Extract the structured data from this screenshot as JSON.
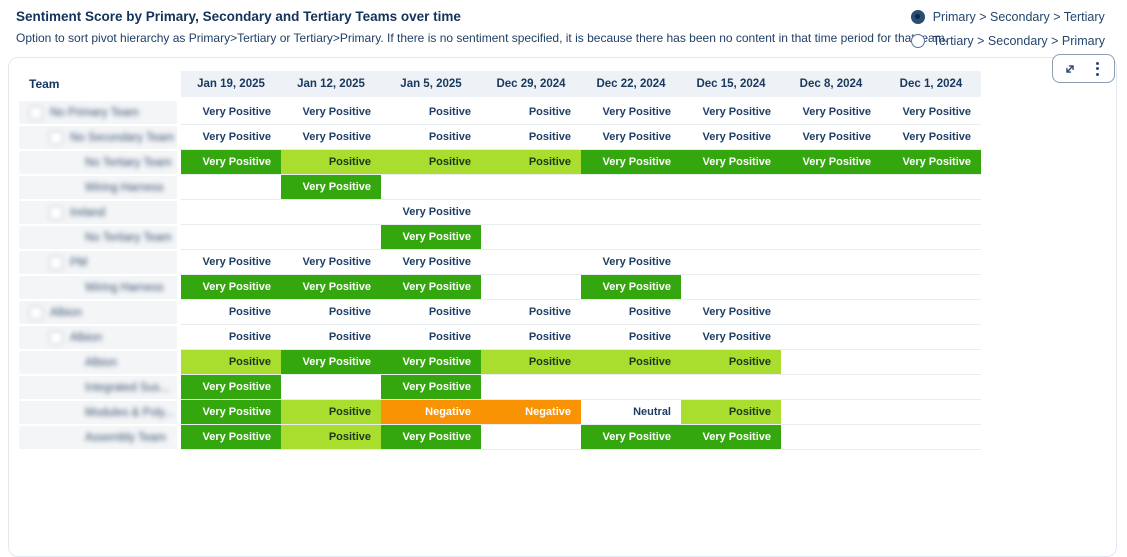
{
  "header": {
    "title": "Sentiment Score by Primary, Secondary and Tertiary Teams over time",
    "subtitle": "Option to sort pivot hierarchy as Primary>Tertiary or Tertiary>Primary. If there is no sentiment specified, it is because there has been no content in that time period for that team.",
    "sort_options": [
      {
        "label": "Primary > Secondary > Tertiary",
        "selected": true
      },
      {
        "label": "Tertiary > Secondary > Primary",
        "selected": false
      }
    ]
  },
  "controls": {
    "expand_icon": "expand-arrows-icon",
    "menu_icon": "kebab-menu-icon"
  },
  "palette": {
    "green": "#35a70e",
    "lime": "#aade2e",
    "orange": "#fa9304",
    "navy": "#1c3c63",
    "headerbg": "#eef1f5",
    "rowborder": "#e8edf2",
    "treebg": "#f3f5f7",
    "onlime": "#173a1c"
  },
  "table": {
    "team_header": "Team",
    "columns": [
      "Jan 19, 2025",
      "Jan 12, 2025",
      "Jan 5, 2025",
      "Dec 29, 2024",
      "Dec 22, 2024",
      "Dec 15, 2024",
      "Dec 8, 2024",
      "Dec 1, 2024"
    ],
    "sentiment_levels": [
      "Very Positive",
      "Positive",
      "Neutral",
      "Negative"
    ],
    "rows": [
      {
        "label": "No Primary Team",
        "level": 1,
        "checkbox": true,
        "redacted": true,
        "cells": [
          {
            "text": "Very Positive",
            "tone": "plain"
          },
          {
            "text": "Very Positive",
            "tone": "plain"
          },
          {
            "text": "Positive",
            "tone": "plain"
          },
          {
            "text": "Positive",
            "tone": "plain"
          },
          {
            "text": "Very Positive",
            "tone": "plain"
          },
          {
            "text": "Very Positive",
            "tone": "plain"
          },
          {
            "text": "Very Positive",
            "tone": "plain"
          },
          {
            "text": "Very Positive",
            "tone": "plain"
          }
        ]
      },
      {
        "label": "No Secondary Team",
        "level": 2,
        "checkbox": true,
        "redacted": true,
        "cells": [
          {
            "text": "Very Positive",
            "tone": "plain"
          },
          {
            "text": "Very Positive",
            "tone": "plain"
          },
          {
            "text": "Positive",
            "tone": "plain"
          },
          {
            "text": "Positive",
            "tone": "plain"
          },
          {
            "text": "Very Positive",
            "tone": "plain"
          },
          {
            "text": "Very Positive",
            "tone": "plain"
          },
          {
            "text": "Very Positive",
            "tone": "plain"
          },
          {
            "text": "Very Positive",
            "tone": "plain"
          }
        ]
      },
      {
        "label": "No Tertiary Team",
        "level": 3,
        "checkbox": false,
        "redacted": true,
        "cells": [
          {
            "text": "Very Positive",
            "tone": "green"
          },
          {
            "text": "Positive",
            "tone": "lime"
          },
          {
            "text": "Positive",
            "tone": "lime"
          },
          {
            "text": "Positive",
            "tone": "lime"
          },
          {
            "text": "Very Positive",
            "tone": "green"
          },
          {
            "text": "Very Positive",
            "tone": "green"
          },
          {
            "text": "Very Positive",
            "tone": "green"
          },
          {
            "text": "Very Positive",
            "tone": "green"
          }
        ]
      },
      {
        "label": "Wiring Harness",
        "level": 3,
        "checkbox": false,
        "redacted": true,
        "cells": [
          {
            "text": "",
            "tone": "empty"
          },
          {
            "text": "Very Positive",
            "tone": "green"
          },
          {
            "text": "",
            "tone": "empty"
          },
          {
            "text": "",
            "tone": "empty"
          },
          {
            "text": "",
            "tone": "empty"
          },
          {
            "text": "",
            "tone": "empty"
          },
          {
            "text": "",
            "tone": "empty"
          },
          {
            "text": "",
            "tone": "empty"
          }
        ]
      },
      {
        "label": "Ireland",
        "level": 2,
        "checkbox": true,
        "redacted": true,
        "cells": [
          {
            "text": "",
            "tone": "empty"
          },
          {
            "text": "",
            "tone": "empty"
          },
          {
            "text": "Very Positive",
            "tone": "plain"
          },
          {
            "text": "",
            "tone": "empty"
          },
          {
            "text": "",
            "tone": "empty"
          },
          {
            "text": "",
            "tone": "empty"
          },
          {
            "text": "",
            "tone": "empty"
          },
          {
            "text": "",
            "tone": "empty"
          }
        ]
      },
      {
        "label": "No Tertiary Team",
        "level": 3,
        "checkbox": false,
        "redacted": true,
        "cells": [
          {
            "text": "",
            "tone": "empty"
          },
          {
            "text": "",
            "tone": "empty"
          },
          {
            "text": "Very Positive",
            "tone": "green"
          },
          {
            "text": "",
            "tone": "empty"
          },
          {
            "text": "",
            "tone": "empty"
          },
          {
            "text": "",
            "tone": "empty"
          },
          {
            "text": "",
            "tone": "empty"
          },
          {
            "text": "",
            "tone": "empty"
          }
        ]
      },
      {
        "label": "PM",
        "level": 2,
        "checkbox": true,
        "redacted": true,
        "cells": [
          {
            "text": "Very Positive",
            "tone": "plain"
          },
          {
            "text": "Very Positive",
            "tone": "plain"
          },
          {
            "text": "Very Positive",
            "tone": "plain"
          },
          {
            "text": "",
            "tone": "empty"
          },
          {
            "text": "Very Positive",
            "tone": "plain"
          },
          {
            "text": "",
            "tone": "empty"
          },
          {
            "text": "",
            "tone": "empty"
          },
          {
            "text": "",
            "tone": "empty"
          }
        ]
      },
      {
        "label": "Wiring Harness",
        "level": 3,
        "checkbox": false,
        "redacted": true,
        "cells": [
          {
            "text": "Very Positive",
            "tone": "green"
          },
          {
            "text": "Very Positive",
            "tone": "green"
          },
          {
            "text": "Very Positive",
            "tone": "green"
          },
          {
            "text": "",
            "tone": "empty"
          },
          {
            "text": "Very Positive",
            "tone": "green"
          },
          {
            "text": "",
            "tone": "empty"
          },
          {
            "text": "",
            "tone": "empty"
          },
          {
            "text": "",
            "tone": "empty"
          }
        ]
      },
      {
        "label": "Albion",
        "level": 1,
        "checkbox": true,
        "redacted": true,
        "cells": [
          {
            "text": "Positive",
            "tone": "plain"
          },
          {
            "text": "Positive",
            "tone": "plain"
          },
          {
            "text": "Positive",
            "tone": "plain"
          },
          {
            "text": "Positive",
            "tone": "plain"
          },
          {
            "text": "Positive",
            "tone": "plain"
          },
          {
            "text": "Very Positive",
            "tone": "plain"
          },
          {
            "text": "",
            "tone": "empty"
          },
          {
            "text": "",
            "tone": "empty"
          }
        ]
      },
      {
        "label": "Albion",
        "level": 2,
        "checkbox": true,
        "redacted": true,
        "cells": [
          {
            "text": "Positive",
            "tone": "plain"
          },
          {
            "text": "Positive",
            "tone": "plain"
          },
          {
            "text": "Positive",
            "tone": "plain"
          },
          {
            "text": "Positive",
            "tone": "plain"
          },
          {
            "text": "Positive",
            "tone": "plain"
          },
          {
            "text": "Very Positive",
            "tone": "plain"
          },
          {
            "text": "",
            "tone": "empty"
          },
          {
            "text": "",
            "tone": "empty"
          }
        ]
      },
      {
        "label": "Albion",
        "level": 3,
        "checkbox": false,
        "redacted": true,
        "cells": [
          {
            "text": "Positive",
            "tone": "lime"
          },
          {
            "text": "Very Positive",
            "tone": "green"
          },
          {
            "text": "Very Positive",
            "tone": "green"
          },
          {
            "text": "Positive",
            "tone": "lime"
          },
          {
            "text": "Positive",
            "tone": "lime"
          },
          {
            "text": "Positive",
            "tone": "lime"
          },
          {
            "text": "",
            "tone": "empty"
          },
          {
            "text": "",
            "tone": "empty"
          }
        ]
      },
      {
        "label": "Integrated Sus...",
        "level": 3,
        "checkbox": false,
        "redacted": true,
        "cells": [
          {
            "text": "Very Positive",
            "tone": "green"
          },
          {
            "text": "",
            "tone": "empty"
          },
          {
            "text": "Very Positive",
            "tone": "green"
          },
          {
            "text": "",
            "tone": "empty"
          },
          {
            "text": "",
            "tone": "empty"
          },
          {
            "text": "",
            "tone": "empty"
          },
          {
            "text": "",
            "tone": "empty"
          },
          {
            "text": "",
            "tone": "empty"
          }
        ]
      },
      {
        "label": "Modules & Poly...",
        "level": 3,
        "checkbox": false,
        "redacted": true,
        "cells": [
          {
            "text": "Very Positive",
            "tone": "green"
          },
          {
            "text": "Positive",
            "tone": "lime"
          },
          {
            "text": "Negative",
            "tone": "orange"
          },
          {
            "text": "Negative",
            "tone": "orange"
          },
          {
            "text": "Neutral",
            "tone": "plain"
          },
          {
            "text": "Positive",
            "tone": "lime"
          },
          {
            "text": "",
            "tone": "empty"
          },
          {
            "text": "",
            "tone": "empty"
          }
        ]
      },
      {
        "label": "Assembly Team",
        "level": 3,
        "checkbox": false,
        "redacted": true,
        "cells": [
          {
            "text": "Very Positive",
            "tone": "green"
          },
          {
            "text": "Positive",
            "tone": "lime"
          },
          {
            "text": "Very Positive",
            "tone": "green"
          },
          {
            "text": "",
            "tone": "empty"
          },
          {
            "text": "Very Positive",
            "tone": "green"
          },
          {
            "text": "Very Positive",
            "tone": "green"
          },
          {
            "text": "",
            "tone": "empty"
          },
          {
            "text": "",
            "tone": "empty"
          }
        ]
      }
    ]
  }
}
